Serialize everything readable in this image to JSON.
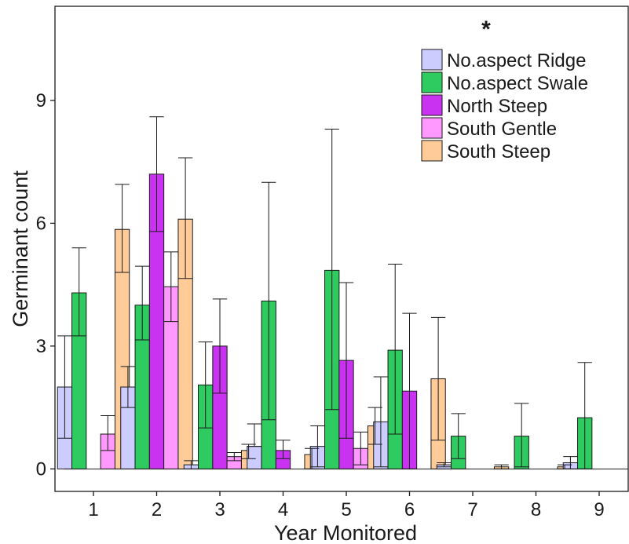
{
  "chart_data": {
    "type": "bar",
    "title": "",
    "xlabel": "Year Monitored",
    "ylabel": "Germinant count",
    "annotation": "*",
    "categories": [
      "1",
      "2",
      "3",
      "4",
      "5",
      "6",
      "7",
      "8",
      "9"
    ],
    "y_ticks": [
      "0",
      "3",
      "6",
      "9"
    ],
    "ylim": [
      -0.55,
      11.3
    ],
    "grid": false,
    "legend_position": "top-right",
    "series": [
      {
        "name": "No.aspect Ridge",
        "color": "#ccccff",
        "values": [
          2.0,
          2.0,
          0.1,
          0.55,
          0.55,
          1.15,
          0.1,
          null,
          0.15
        ],
        "err_low": [
          0.75,
          1.5,
          0.0,
          0.55,
          0.05,
          0.05,
          0.05,
          null,
          0.0
        ],
        "err_high": [
          3.25,
          2.5,
          0.2,
          1.1,
          1.05,
          2.25,
          0.15,
          null,
          0.3
        ]
      },
      {
        "name": "No.aspect Swale",
        "color": "#2ecc60",
        "values": [
          4.3,
          4.0,
          2.05,
          4.1,
          4.85,
          2.9,
          0.8,
          0.8,
          1.25
        ],
        "err_low": [
          3.25,
          3.15,
          1.0,
          1.2,
          1.45,
          0.85,
          0.25,
          0.05,
          0.0
        ],
        "err_high": [
          5.4,
          4.95,
          3.1,
          7.0,
          8.3,
          5.0,
          1.35,
          1.6,
          2.6
        ]
      },
      {
        "name": "North Steep",
        "color": "#c832f0",
        "values": [
          null,
          7.2,
          3.0,
          0.45,
          2.65,
          1.9,
          null,
          null,
          null
        ],
        "err_low": [
          null,
          5.8,
          1.85,
          0.25,
          0.75,
          0.0,
          null,
          null,
          null
        ],
        "err_high": [
          null,
          8.6,
          4.15,
          0.7,
          4.55,
          3.8,
          null,
          null,
          null
        ]
      },
      {
        "name": "South Gentle",
        "color": "#ff99ff",
        "values": [
          0.85,
          4.45,
          0.3,
          null,
          0.5,
          null,
          null,
          null,
          null
        ],
        "err_low": [
          0.45,
          3.6,
          0.2,
          null,
          0.1,
          null,
          null,
          null,
          null
        ],
        "err_high": [
          1.3,
          5.3,
          0.4,
          null,
          0.9,
          null,
          null,
          null,
          null
        ]
      },
      {
        "name": "South Steep",
        "color": "#ffcc99",
        "values": [
          5.85,
          6.1,
          0.45,
          0.35,
          1.05,
          2.2,
          0.05,
          0.05,
          null
        ],
        "err_low": [
          4.8,
          4.65,
          0.25,
          0.0,
          0.6,
          0.7,
          0.0,
          0.0,
          null
        ],
        "err_high": [
          6.95,
          7.6,
          0.6,
          0.5,
          1.5,
          3.7,
          0.1,
          0.1,
          null
        ]
      }
    ]
  }
}
